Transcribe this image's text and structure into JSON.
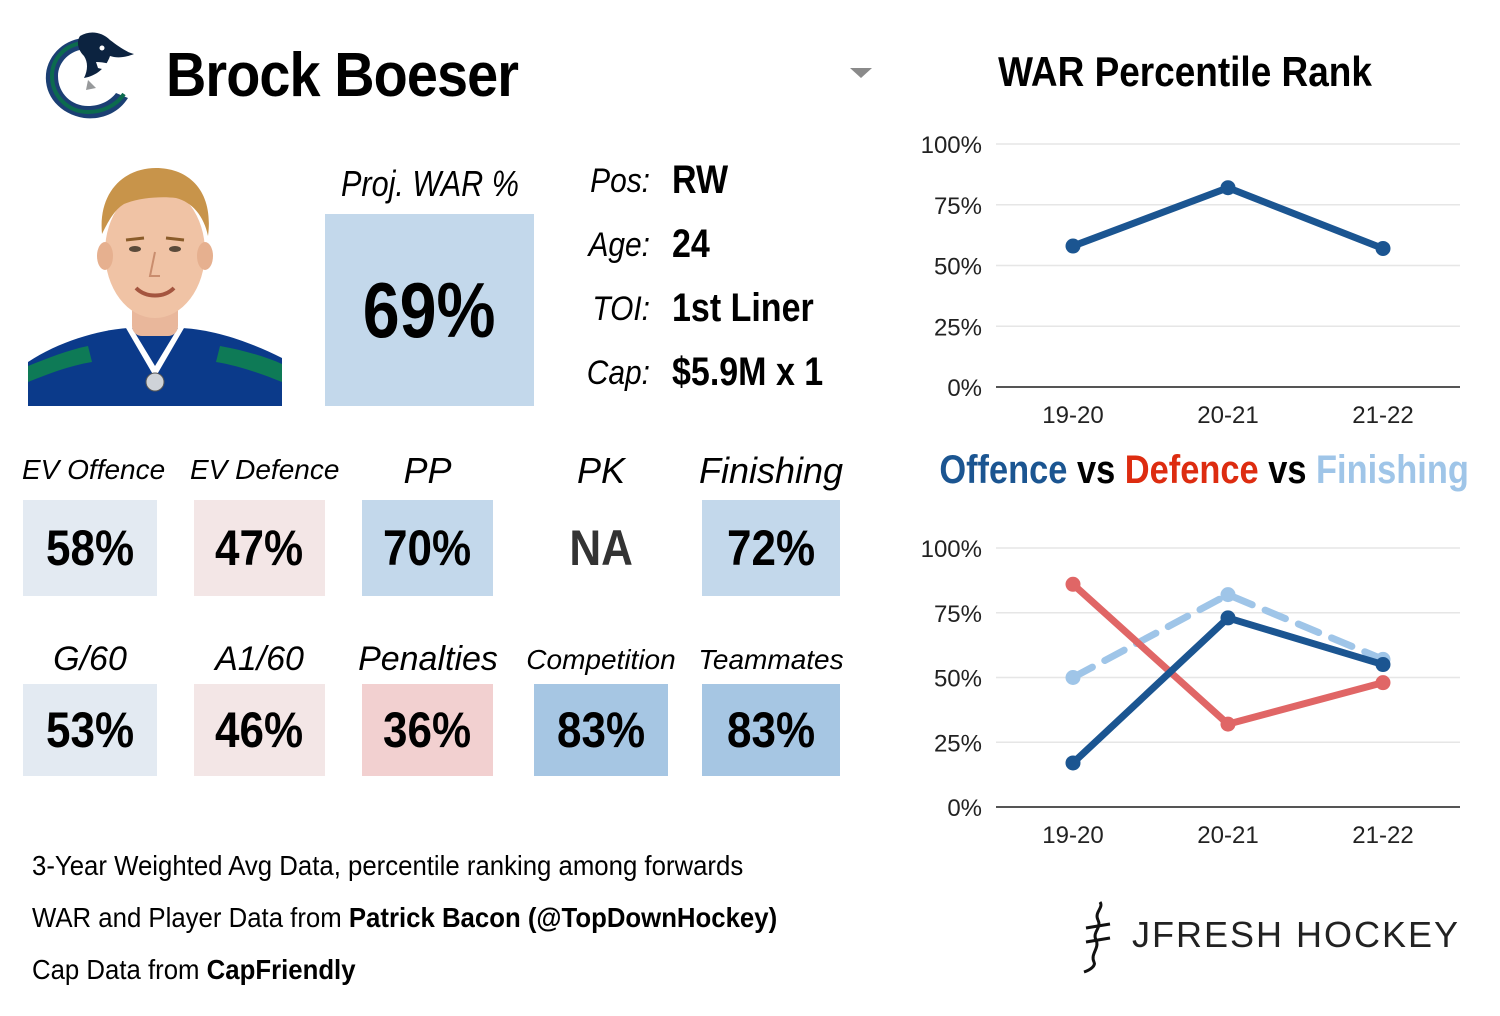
{
  "player": {
    "name": "Brock Boeser",
    "team_logo": "canucks-orca-logo",
    "proj_war_label": "Proj. WAR %",
    "proj_war_value": "69%",
    "info": [
      {
        "label": "Pos:",
        "value": "RW"
      },
      {
        "label": "Age:",
        "value": "24"
      },
      {
        "label": "TOI:",
        "value": "1st Liner"
      },
      {
        "label": "Cap:",
        "value": "$5.9M x 1"
      }
    ]
  },
  "stats_row1": [
    {
      "label": "EV Offence",
      "value": "58%",
      "color": "#e3eaf2"
    },
    {
      "label": "EV Defence",
      "value": "47%",
      "color": "#f3e6e6"
    },
    {
      "label": "PP",
      "value": "70%",
      "color": "#c3d8eb"
    },
    {
      "label": "PK",
      "value": "NA",
      "color": "#ffffff"
    },
    {
      "label": "Finishing",
      "value": "72%",
      "color": "#c3d8eb"
    }
  ],
  "stats_row2": [
    {
      "label": "G/60",
      "value": "53%",
      "color": "#e3eaf2"
    },
    {
      "label": "A1/60",
      "value": "46%",
      "color": "#f3e6e6"
    },
    {
      "label": "Penalties",
      "value": "36%",
      "color": "#f2d0d0"
    },
    {
      "label": "Competition",
      "value": "83%",
      "color": "#a6c6e3"
    },
    {
      "label": "Teammates",
      "value": "83%",
      "color": "#a6c6e3"
    }
  ],
  "footer": {
    "line1": "3-Year Weighted Avg Data, percentile ranking among forwards",
    "line2_prefix": "WAR and Player Data from ",
    "line2_bold": "Patrick Bacon (@TopDownHockey)",
    "line3_prefix": "Cap Data from ",
    "line3_bold": "CapFriendly"
  },
  "brand": {
    "text": "JFRESH HOCKEY",
    "icon": "jfresh-logo-icon"
  },
  "colors": {
    "dark_blue": "#1b5591",
    "red": "#e06666",
    "light_blue": "#9fc5e8",
    "dropdown": "#8a8a8a"
  },
  "dropdown_icon": "chevron-down-icon",
  "chart_data": [
    {
      "type": "line",
      "title": "WAR Percentile Rank",
      "categories": [
        "19-20",
        "20-21",
        "21-22"
      ],
      "yticks": [
        "0%",
        "25%",
        "50%",
        "75%",
        "100%"
      ],
      "ylim": [
        0,
        100
      ],
      "grid": true,
      "series": [
        {
          "values": [
            58,
            82,
            57
          ],
          "color": "#1b5591",
          "dash": false
        }
      ]
    },
    {
      "type": "line",
      "title_parts": [
        {
          "text": "Offence",
          "color": "#1b5591"
        },
        {
          "text": " vs ",
          "color": "#000000"
        },
        {
          "text": "Defence",
          "color": "#dd2c10"
        },
        {
          "text": " vs ",
          "color": "#000000"
        },
        {
          "text": "Finishing",
          "color": "#9fc5e8"
        }
      ],
      "categories": [
        "19-20",
        "20-21",
        "21-22"
      ],
      "yticks": [
        "0%",
        "25%",
        "50%",
        "75%",
        "100%"
      ],
      "ylim": [
        0,
        100
      ],
      "grid": true,
      "series": [
        {
          "name": "Finishing",
          "values": [
            50,
            82,
            57
          ],
          "color": "#9fc5e8",
          "dash": true
        },
        {
          "name": "Defence",
          "values": [
            86,
            32,
            48
          ],
          "color": "#e06666",
          "dash": false
        },
        {
          "name": "Offence",
          "values": [
            17,
            73,
            55
          ],
          "color": "#1b5591",
          "dash": false
        }
      ]
    }
  ]
}
